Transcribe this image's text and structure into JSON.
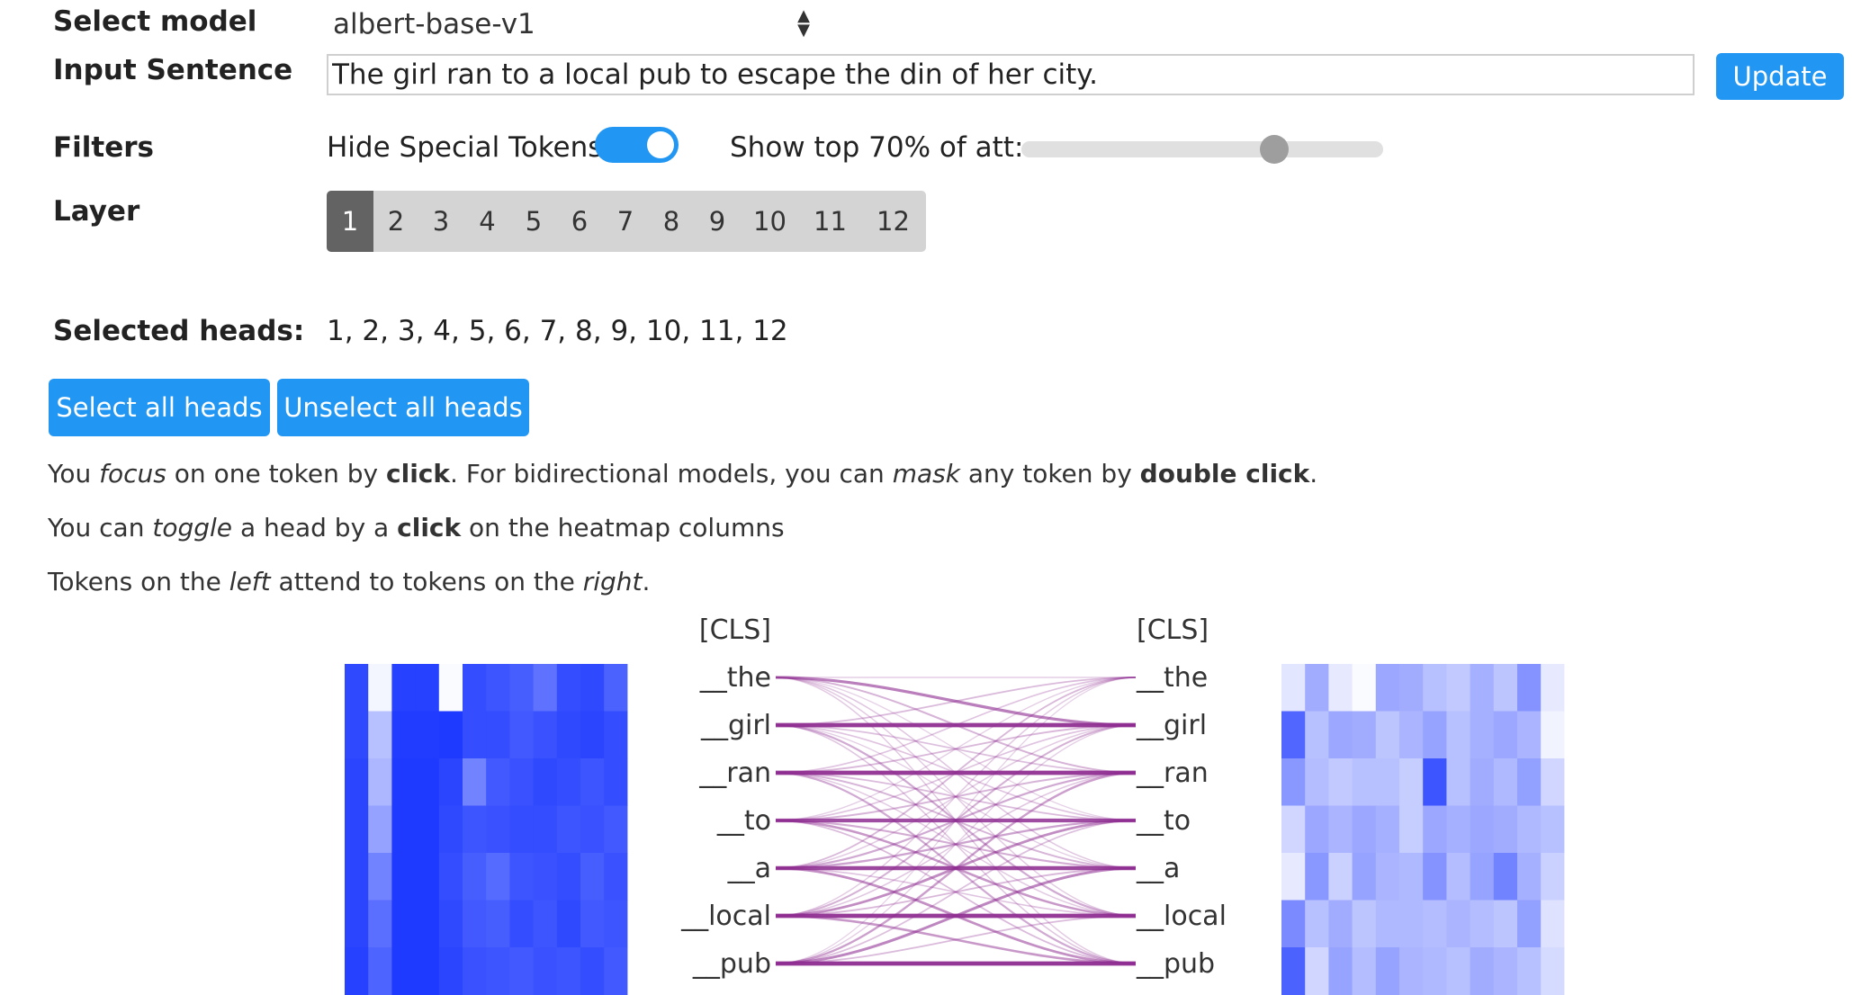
{
  "controls": {
    "select_model_label": "Select model",
    "model_value": "albert-base-v1",
    "input_sentence_label": "Input Sentence",
    "sentence_value": "The girl ran to a local pub to escape the din of her city.",
    "update_button": "Update",
    "filters_label": "Filters",
    "hide_special_tokens_label": "Hide Special Tokens",
    "hide_special_tokens_on": true,
    "show_top_label": "Show top 70% of att:",
    "show_top_value": 70,
    "layer_label": "Layer",
    "layers": [
      "1",
      "2",
      "3",
      "4",
      "5",
      "6",
      "7",
      "8",
      "9",
      "10",
      "11",
      "12"
    ],
    "selected_layer": "1",
    "selected_heads_label": "Selected heads:",
    "selected_heads_value": "1, 2, 3, 4, 5, 6, 7, 8, 9, 10, 11, 12",
    "select_all_button": "Select all heads",
    "unselect_all_button": "Unselect all heads"
  },
  "instructions": {
    "line1": {
      "p1": "You ",
      "p2": "focus",
      "p3": " on one token by ",
      "p4": "click",
      "p5": ". For bidirectional models, you can ",
      "p6": "mask",
      "p7": " any token by ",
      "p8": "double click",
      "p9": "."
    },
    "line2": {
      "p1": "You can ",
      "p2": "toggle",
      "p3": " a head by a ",
      "p4": "click",
      "p5": " on the heatmap columns"
    },
    "line3": {
      "p1": "Tokens on the ",
      "p2": "left",
      "p3": " attend to tokens on the ",
      "p4": "right",
      "p5": "."
    }
  },
  "visualization": {
    "left_tokens": [
      "[CLS]",
      "__the",
      "__girl",
      "__ran",
      "__to",
      "__a",
      "__local",
      "__pub"
    ],
    "right_tokens": [
      "[CLS]",
      "__the",
      "__girl",
      "__ran",
      "__to",
      "__a",
      "__local",
      "__pub"
    ],
    "line_color": "#8e2d91",
    "heatmap_color": "#1330ff",
    "left_heatmap": [
      [
        0.88,
        0.05,
        0.92,
        0.92,
        0.02,
        0.86,
        0.82,
        0.78,
        0.68,
        0.86,
        0.88,
        0.76
      ],
      [
        0.88,
        0.3,
        0.94,
        0.94,
        0.95,
        0.86,
        0.86,
        0.8,
        0.84,
        0.88,
        0.9,
        0.86
      ],
      [
        0.9,
        0.35,
        0.95,
        0.95,
        0.9,
        0.6,
        0.8,
        0.84,
        0.88,
        0.86,
        0.82,
        0.86
      ],
      [
        0.9,
        0.45,
        0.95,
        0.95,
        0.88,
        0.82,
        0.84,
        0.86,
        0.86,
        0.82,
        0.84,
        0.8
      ],
      [
        0.9,
        0.6,
        0.95,
        0.95,
        0.86,
        0.78,
        0.72,
        0.82,
        0.84,
        0.86,
        0.78,
        0.84
      ],
      [
        0.9,
        0.7,
        0.95,
        0.95,
        0.88,
        0.8,
        0.78,
        0.86,
        0.82,
        0.88,
        0.8,
        0.82
      ],
      [
        0.92,
        0.75,
        0.95,
        0.95,
        0.9,
        0.84,
        0.82,
        0.8,
        0.84,
        0.82,
        0.86,
        0.8
      ]
    ],
    "right_heatmap": [
      [
        0.12,
        0.4,
        0.1,
        0.02,
        0.42,
        0.4,
        0.3,
        0.26,
        0.38,
        0.28,
        0.52,
        0.1
      ],
      [
        0.74,
        0.3,
        0.42,
        0.4,
        0.28,
        0.36,
        0.44,
        0.3,
        0.38,
        0.42,
        0.36,
        0.06
      ],
      [
        0.5,
        0.32,
        0.26,
        0.3,
        0.3,
        0.24,
        0.82,
        0.3,
        0.4,
        0.34,
        0.46,
        0.2
      ],
      [
        0.2,
        0.42,
        0.36,
        0.42,
        0.38,
        0.24,
        0.42,
        0.38,
        0.42,
        0.4,
        0.34,
        0.3
      ],
      [
        0.1,
        0.5,
        0.22,
        0.44,
        0.36,
        0.34,
        0.52,
        0.32,
        0.44,
        0.6,
        0.38,
        0.22
      ],
      [
        0.56,
        0.3,
        0.4,
        0.28,
        0.34,
        0.34,
        0.32,
        0.36,
        0.32,
        0.28,
        0.46,
        0.14
      ],
      [
        0.76,
        0.2,
        0.44,
        0.32,
        0.44,
        0.36,
        0.34,
        0.3,
        0.4,
        0.36,
        0.3,
        0.18
      ]
    ],
    "attention": [
      [
        0.1,
        0.55,
        0.25,
        0.08,
        0.14,
        0.12,
        0.12
      ],
      [
        0.2,
        0.92,
        0.18,
        0.16,
        0.1,
        0.3,
        0.14
      ],
      [
        0.16,
        0.22,
        0.92,
        0.2,
        0.24,
        0.12,
        0.3
      ],
      [
        0.1,
        0.16,
        0.24,
        0.82,
        0.28,
        0.4,
        0.2
      ],
      [
        0.22,
        0.12,
        0.3,
        0.34,
        0.85,
        0.16,
        0.45
      ],
      [
        0.12,
        0.26,
        0.14,
        0.46,
        0.22,
        0.92,
        0.4
      ],
      [
        0.08,
        0.1,
        0.36,
        0.18,
        0.5,
        0.2,
        0.94
      ]
    ]
  }
}
